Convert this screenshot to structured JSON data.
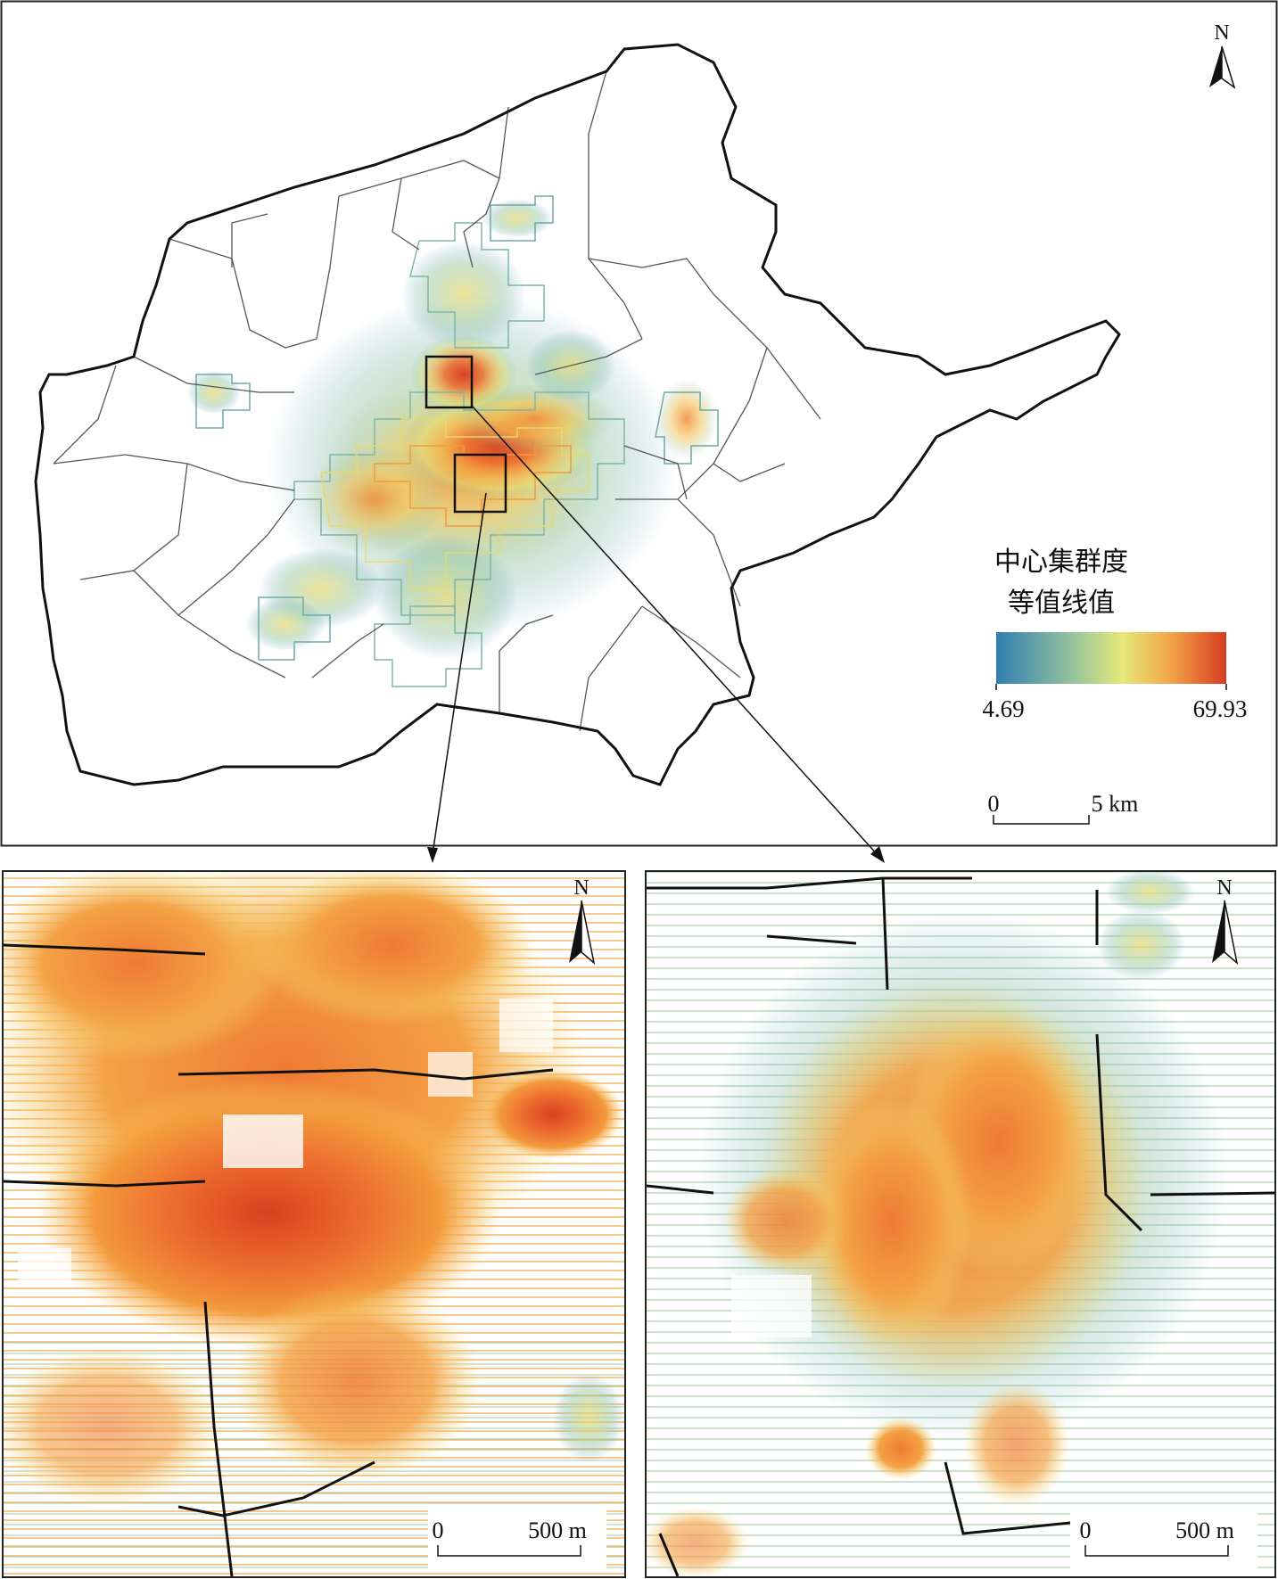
{
  "main_map": {
    "north_label": "N",
    "legend": {
      "title_line1": "中心集群度",
      "title_line2": "等值线值",
      "min_label": "4.69",
      "max_label": "69.93",
      "min_value": 4.69,
      "max_value": 69.93,
      "colors": [
        "#2f7fb3",
        "#8fbf9a",
        "#e6e879",
        "#f2b449",
        "#d83a1f"
      ]
    },
    "scale_bar": {
      "zero_label": "0",
      "end_label": "5 km"
    }
  },
  "inset_left": {
    "north_label": "N",
    "scale_bar": {
      "zero_label": "0",
      "end_label": "500 m"
    }
  },
  "inset_right": {
    "north_label": "N",
    "scale_bar": {
      "zero_label": "0",
      "end_label": "500 m"
    }
  },
  "icons": {
    "north_arrow": "north-arrow-icon"
  }
}
